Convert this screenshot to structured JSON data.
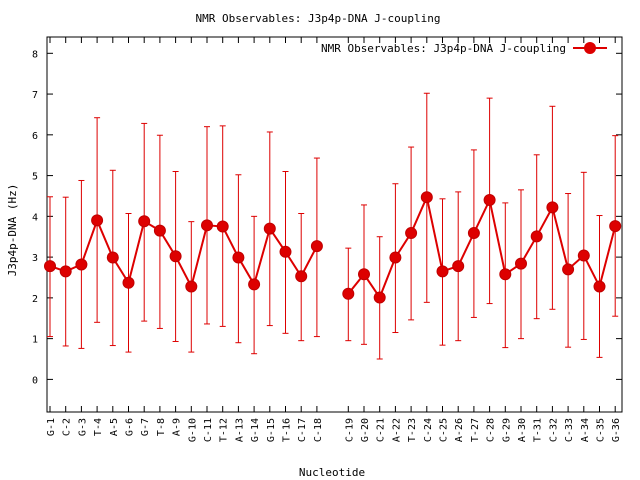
{
  "chart_data": {
    "type": "line",
    "title": "NMR Observables: J3p4p-DNA J-coupling",
    "xlabel": "Nucleotide",
    "ylabel": "J3p4p-DNA (Hz)",
    "ylim": [
      -0.8,
      8.4
    ],
    "yticks": [
      0,
      1,
      2,
      3,
      4,
      5,
      6,
      7,
      8
    ],
    "grid": false,
    "legend_position": "top-right",
    "series_color": "#dd0000",
    "categories": [
      "G-1",
      "C-2",
      "G-3",
      "T-4",
      "A-5",
      "G-6",
      "G-7",
      "T-8",
      "A-9",
      "G-10",
      "C-11",
      "T-12",
      "A-13",
      "G-14",
      "G-15",
      "T-16",
      "C-17",
      "C-18",
      "",
      "C-19",
      "G-20",
      "C-21",
      "A-22",
      "T-23",
      "C-24",
      "C-25",
      "A-26",
      "T-27",
      "C-28",
      "G-29",
      "A-30",
      "T-31",
      "C-32",
      "C-33",
      "A-34",
      "C-35",
      "G-36"
    ],
    "series": [
      {
        "name": "NMR Observables: J3p4p-DNA J-coupling",
        "values": [
          2.78,
          2.65,
          2.82,
          3.9,
          2.99,
          2.37,
          3.88,
          3.65,
          3.02,
          2.28,
          3.78,
          3.75,
          2.99,
          2.33,
          3.7,
          3.13,
          2.53,
          3.27,
          null,
          2.1,
          2.58,
          2.01,
          2.99,
          3.59,
          4.47,
          2.65,
          2.78,
          3.59,
          4.4,
          2.58,
          2.84,
          3.51,
          4.22,
          2.7,
          3.04,
          2.28,
          3.76
        ],
        "error_high": [
          4.48,
          4.47,
          4.88,
          6.42,
          5.13,
          4.07,
          6.28,
          5.99,
          5.1,
          3.87,
          6.2,
          6.22,
          5.02,
          4.0,
          6.07,
          5.1,
          4.07,
          5.43,
          null,
          3.22,
          4.28,
          3.5,
          4.8,
          5.7,
          7.02,
          4.43,
          4.6,
          5.63,
          6.9,
          4.33,
          4.65,
          5.51,
          6.7,
          4.56,
          5.08,
          4.02,
          5.98
        ],
        "error_low": [
          1.05,
          0.82,
          0.76,
          1.4,
          0.83,
          0.67,
          1.43,
          1.25,
          0.93,
          0.67,
          1.36,
          1.3,
          0.9,
          0.63,
          1.32,
          1.13,
          0.95,
          1.05,
          null,
          0.95,
          0.86,
          0.5,
          1.15,
          1.46,
          1.89,
          0.84,
          0.95,
          1.52,
          1.86,
          0.78,
          1.0,
          1.49,
          1.72,
          0.79,
          0.98,
          0.54,
          1.55
        ]
      }
    ]
  }
}
